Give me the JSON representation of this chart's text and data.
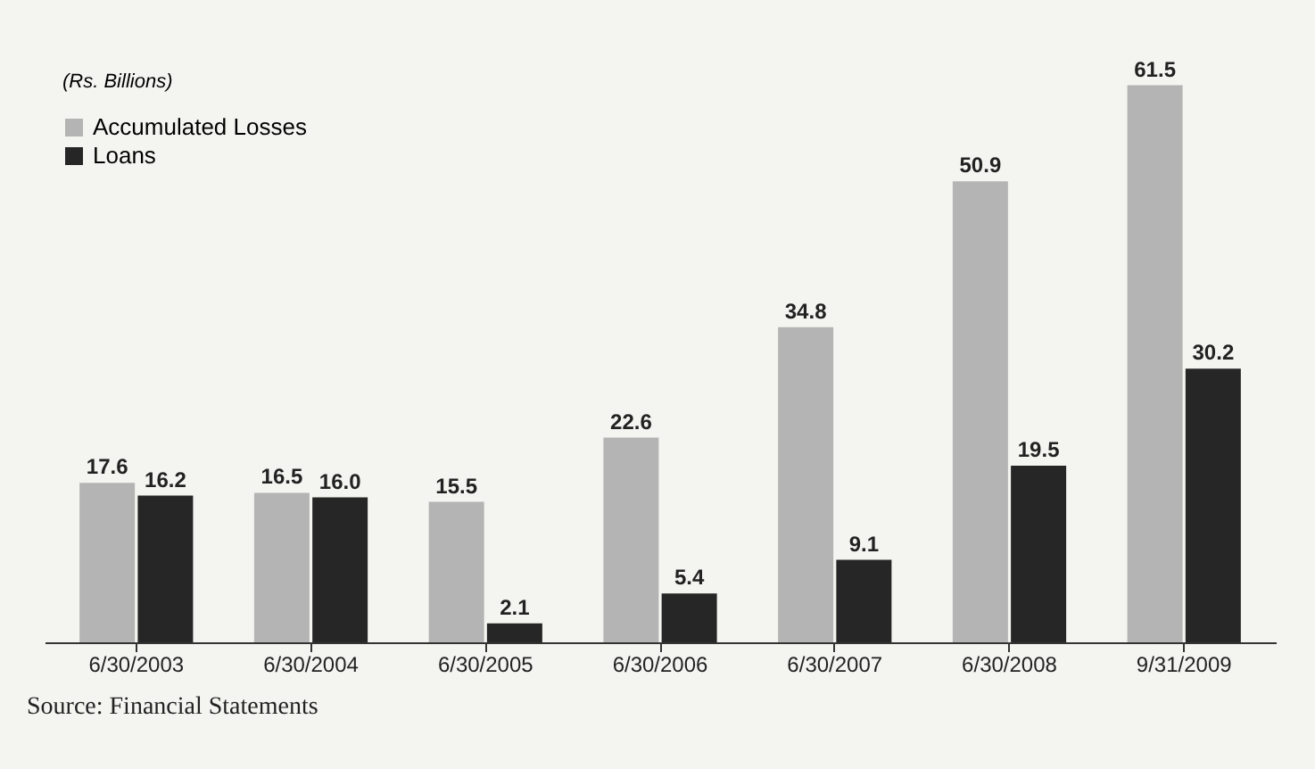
{
  "chart_data": {
    "type": "bar",
    "legend_title": "(Rs. Billions)",
    "annotations": [
      "Source: Financial Statements"
    ],
    "categories": [
      "6/30/2003",
      "6/30/2004",
      "6/30/2005",
      "6/30/2006",
      "6/30/2007",
      "6/30/2008",
      "9/31/2009"
    ],
    "series": [
      {
        "name": "Accumulated Losses",
        "color": "#b4b4b4",
        "values": [
          17.6,
          16.5,
          15.5,
          22.6,
          34.8,
          50.9,
          61.5
        ],
        "value_labels": [
          "17.6",
          "16.5",
          "15.5",
          "22.6",
          "34.8",
          "50.9",
          "61.5"
        ]
      },
      {
        "name": "Loans",
        "color": "#262626",
        "values": [
          16.2,
          16.0,
          2.1,
          5.4,
          9.1,
          19.5,
          30.2
        ],
        "value_labels": [
          "16.2",
          "16.0",
          "2.1",
          "5.4",
          "9.1",
          "19.5",
          "30.2"
        ]
      }
    ],
    "legend": "top left",
    "grid": false
  }
}
